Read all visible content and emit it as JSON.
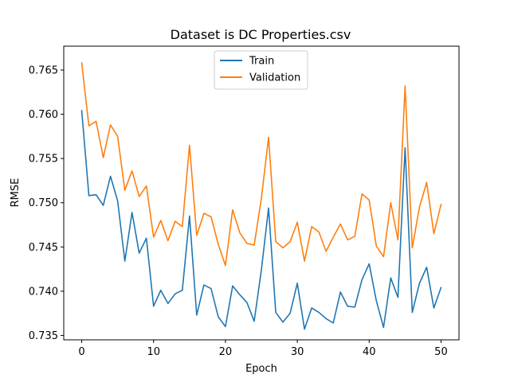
{
  "chart_data": {
    "type": "line",
    "title": "Dataset is DC Properties.csv",
    "xlabel": "Epoch",
    "ylabel": "RMSE",
    "xlim": [
      -2.5,
      52.5
    ],
    "ylim": [
      0.7345,
      0.7677
    ],
    "xticks": [
      0,
      10,
      20,
      30,
      40,
      50
    ],
    "yticks": [
      0.735,
      0.74,
      0.745,
      0.75,
      0.755,
      0.76,
      0.765
    ],
    "legend_position": "top-center",
    "grid": false,
    "x": [
      0,
      1,
      2,
      3,
      4,
      5,
      6,
      7,
      8,
      9,
      10,
      11,
      12,
      13,
      14,
      15,
      16,
      17,
      18,
      19,
      20,
      21,
      22,
      23,
      24,
      25,
      26,
      27,
      28,
      29,
      30,
      31,
      32,
      33,
      34,
      35,
      36,
      37,
      38,
      39,
      40,
      41,
      42,
      43,
      44,
      45,
      46,
      47,
      48,
      49,
      50
    ],
    "series": [
      {
        "name": "Train",
        "color": "#1f77b4",
        "values": [
          0.7604,
          0.7508,
          0.7509,
          0.7497,
          0.753,
          0.7502,
          0.7434,
          0.7489,
          0.7443,
          0.746,
          0.7383,
          0.7401,
          0.7386,
          0.7397,
          0.7401,
          0.7485,
          0.7373,
          0.7407,
          0.7403,
          0.7371,
          0.736,
          0.7406,
          0.7396,
          0.7387,
          0.7366,
          0.7424,
          0.7494,
          0.7376,
          0.7365,
          0.7375,
          0.7409,
          0.7357,
          0.7381,
          0.7376,
          0.7369,
          0.7364,
          0.7399,
          0.7383,
          0.7382,
          0.7413,
          0.7431,
          0.7389,
          0.7359,
          0.7415,
          0.7393,
          0.7562,
          0.7376,
          0.7409,
          0.7427,
          0.7381,
          0.7404
        ]
      },
      {
        "name": "Validation",
        "color": "#ff7f0e",
        "values": [
          0.7658,
          0.7587,
          0.7592,
          0.7551,
          0.7588,
          0.7575,
          0.7514,
          0.7536,
          0.7507,
          0.7519,
          0.7461,
          0.748,
          0.7457,
          0.7479,
          0.7473,
          0.7565,
          0.7463,
          0.7488,
          0.7484,
          0.7453,
          0.7429,
          0.7492,
          0.7466,
          0.7454,
          0.7452,
          0.7505,
          0.7574,
          0.7456,
          0.7449,
          0.7456,
          0.7478,
          0.7434,
          0.7473,
          0.7467,
          0.7445,
          0.7461,
          0.7476,
          0.7458,
          0.7462,
          0.751,
          0.7503,
          0.7451,
          0.7439,
          0.75,
          0.7458,
          0.7632,
          0.7449,
          0.7495,
          0.7523,
          0.7465,
          0.7498
        ]
      }
    ]
  }
}
